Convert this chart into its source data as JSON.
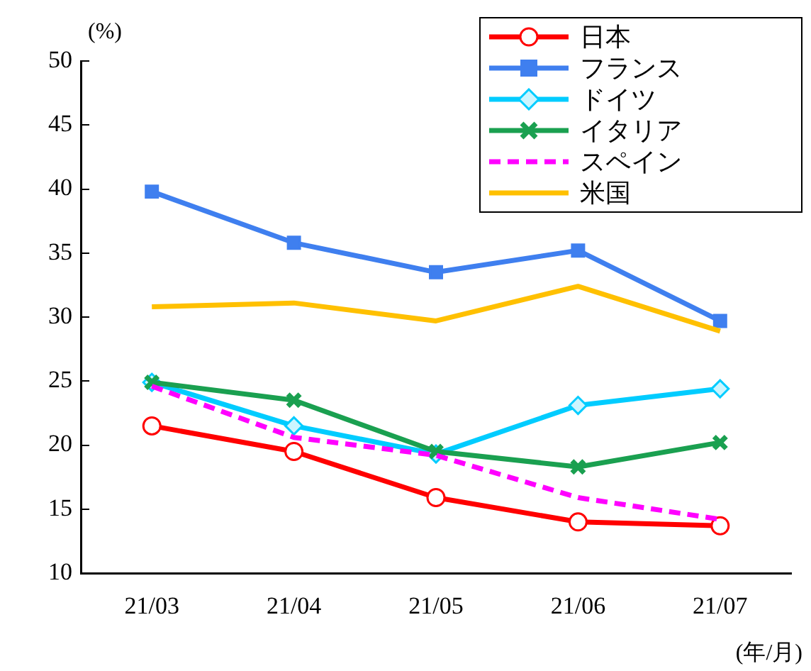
{
  "chart_data": {
    "type": "line",
    "ylabel": "(%)",
    "xlabel": "(年/月)",
    "categories": [
      "21/03",
      "21/04",
      "21/05",
      "21/06",
      "21/07"
    ],
    "ylim": [
      10,
      50
    ],
    "yticks": [
      10,
      15,
      20,
      25,
      30,
      35,
      40,
      45,
      50
    ],
    "grid": false,
    "legend": "top right",
    "series": [
      {
        "name": "日本",
        "color": "#ff0000",
        "marker": "circle",
        "values": [
          21.5,
          19.5,
          15.9,
          14.0,
          13.7
        ]
      },
      {
        "name": "フランス",
        "color": "#3f7fef",
        "marker": "square",
        "values": [
          39.8,
          35.8,
          33.5,
          35.2,
          29.7
        ]
      },
      {
        "name": "ドイツ",
        "color": "#00ccff",
        "marker": "diamond",
        "values": [
          24.9,
          21.5,
          19.3,
          23.1,
          24.4
        ]
      },
      {
        "name": "イタリア",
        "color": "#1aa050",
        "marker": "cross",
        "values": [
          24.9,
          23.5,
          19.5,
          18.3,
          20.2
        ]
      },
      {
        "name": "スペイン",
        "color": "#ff00ff",
        "marker": "none",
        "line_style": "dashed",
        "values": [
          24.6,
          20.6,
          19.2,
          15.9,
          14.2
        ]
      },
      {
        "name": "米国",
        "color": "#ffc000",
        "marker": "none",
        "values": [
          30.8,
          31.1,
          29.7,
          32.4,
          28.9
        ]
      }
    ]
  }
}
